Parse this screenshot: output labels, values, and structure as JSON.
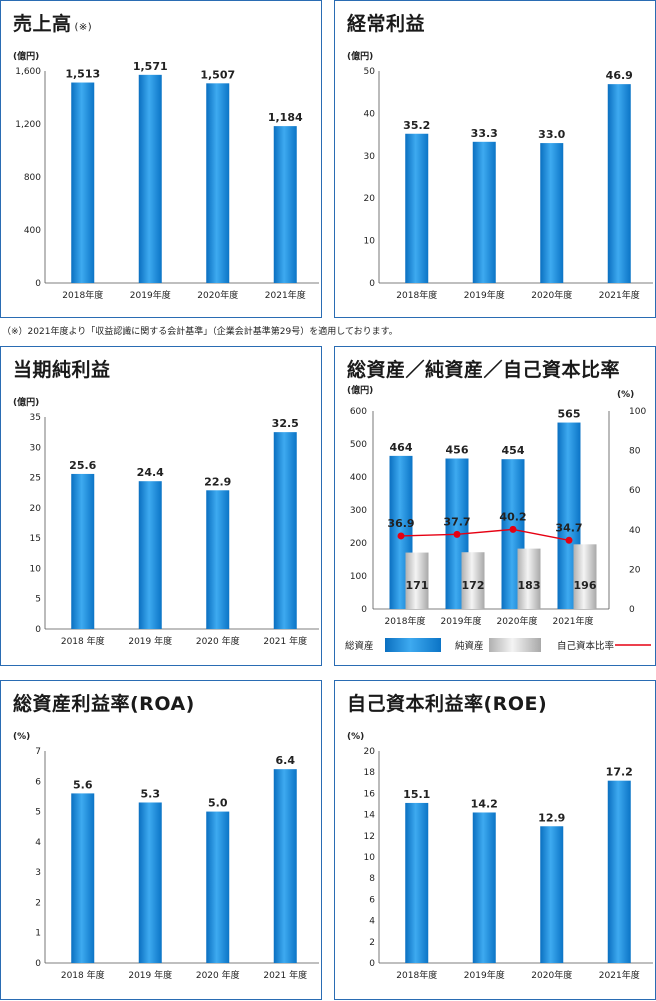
{
  "footnote": "（※）2021年度より「収益認識に関する会計基準」（企業会計基準第29号）を適用しております。",
  "colors": {
    "bar_blue": "#1e90d6",
    "bar_gray": "#c8c8c8",
    "line_red": "#e60012",
    "frame": "#2a6cb3"
  },
  "charts": [
    {
      "id": "sales",
      "title": "売上高",
      "title_note": "(※)",
      "chart_data": {
        "type": "bar",
        "title": "売上高",
        "ylabel": "(億円)",
        "categories": [
          "2018年度",
          "2019年度",
          "2020年度",
          "2021年度"
        ],
        "values": [
          1513,
          1571,
          1507,
          1184
        ],
        "value_labels": [
          "1,513",
          "1,571",
          "1,507",
          "1,184"
        ],
        "ylim": [
          0,
          1600
        ],
        "yticks": [
          0,
          400,
          800,
          1200,
          1600
        ],
        "ytick_labels": [
          "0",
          "400",
          "800",
          "1,200",
          "1,600"
        ]
      }
    },
    {
      "id": "ordinary_profit",
      "title": "経常利益",
      "chart_data": {
        "type": "bar",
        "title": "経常利益",
        "ylabel": "(億円)",
        "categories": [
          "2018年度",
          "2019年度",
          "2020年度",
          "2021年度"
        ],
        "values": [
          35.2,
          33.3,
          33.0,
          46.9
        ],
        "value_labels": [
          "35.2",
          "33.3",
          "33.0",
          "46.9"
        ],
        "ylim": [
          0,
          50
        ],
        "yticks": [
          0,
          10,
          20,
          30,
          40,
          50
        ],
        "ytick_labels": [
          "0",
          "10",
          "20",
          "30",
          "40",
          "50"
        ]
      }
    },
    {
      "id": "net_income",
      "title": "当期純利益",
      "chart_data": {
        "type": "bar",
        "title": "当期純利益",
        "ylabel": "(億円)",
        "categories": [
          "2018 年度",
          "2019 年度",
          "2020 年度",
          "2021 年度"
        ],
        "values": [
          25.6,
          24.4,
          22.9,
          32.5
        ],
        "value_labels": [
          "25.6",
          "24.4",
          "22.9",
          "32.5"
        ],
        "ylim": [
          0,
          35
        ],
        "yticks": [
          0,
          5,
          10,
          15,
          20,
          25,
          30,
          35
        ],
        "ytick_labels": [
          "0",
          "5",
          "10",
          "15",
          "20",
          "25",
          "30",
          "35"
        ]
      }
    },
    {
      "id": "assets",
      "title": "総資産／純資産／自己資本比率",
      "chart_data": {
        "type": "bar",
        "title": "総資産／純資産／自己資本比率",
        "ylabel": "(億円)",
        "y2label": "(%)",
        "categories": [
          "2018年度",
          "2019年度",
          "2020年度",
          "2021年度"
        ],
        "series": [
          {
            "name": "総資産",
            "type": "bar",
            "values": [
              464,
              456,
              454,
              565
            ],
            "value_labels": [
              "464",
              "456",
              "454",
              "565"
            ]
          },
          {
            "name": "純資産",
            "type": "bar",
            "values": [
              171,
              172,
              183,
              196
            ],
            "value_labels": [
              "171",
              "172",
              "183",
              "196"
            ]
          },
          {
            "name": "自己資本比率",
            "type": "line",
            "axis": "right",
            "values": [
              36.9,
              37.7,
              40.2,
              34.7
            ],
            "value_labels": [
              "36.9",
              "37.7",
              "40.2",
              "34.7"
            ]
          }
        ],
        "ylim": [
          0,
          600
        ],
        "yticks": [
          0,
          100,
          200,
          300,
          400,
          500,
          600
        ],
        "ytick_labels": [
          "0",
          "100",
          "200",
          "300",
          "400",
          "500",
          "600"
        ],
        "y2lim": [
          0,
          100
        ],
        "y2ticks": [
          0,
          20,
          40,
          60,
          80,
          100
        ],
        "y2tick_labels": [
          "0",
          "20",
          "40",
          "60",
          "80",
          "100"
        ],
        "legend": "bottom"
      }
    },
    {
      "id": "roa",
      "title": "総資産利益率(ROA)",
      "chart_data": {
        "type": "bar",
        "title": "総資産利益率(ROA)",
        "ylabel": "(%)",
        "categories": [
          "2018 年度",
          "2019 年度",
          "2020 年度",
          "2021 年度"
        ],
        "values": [
          5.6,
          5.3,
          5.0,
          6.4
        ],
        "value_labels": [
          "5.6",
          "5.3",
          "5.0",
          "6.4"
        ],
        "ylim": [
          0,
          7
        ],
        "yticks": [
          0,
          1,
          2,
          3,
          4,
          5,
          6,
          7
        ],
        "ytick_labels": [
          "0",
          "1",
          "2",
          "3",
          "4",
          "5",
          "6",
          "7"
        ]
      }
    },
    {
      "id": "roe",
      "title": "自己資本利益率(ROE)",
      "chart_data": {
        "type": "bar",
        "title": "自己資本利益率(ROE)",
        "ylabel": "(%)",
        "categories": [
          "2018年度",
          "2019年度",
          "2020年度",
          "2021年度"
        ],
        "values": [
          15.1,
          14.2,
          12.9,
          17.2
        ],
        "value_labels": [
          "15.1",
          "14.2",
          "12.9",
          "17.2"
        ],
        "ylim": [
          0,
          20
        ],
        "yticks": [
          0,
          2,
          4,
          6,
          8,
          10,
          12,
          14,
          16,
          18,
          20
        ],
        "ytick_labels": [
          "0",
          "2",
          "4",
          "6",
          "8",
          "10",
          "12",
          "14",
          "16",
          "18",
          "20"
        ]
      }
    }
  ]
}
